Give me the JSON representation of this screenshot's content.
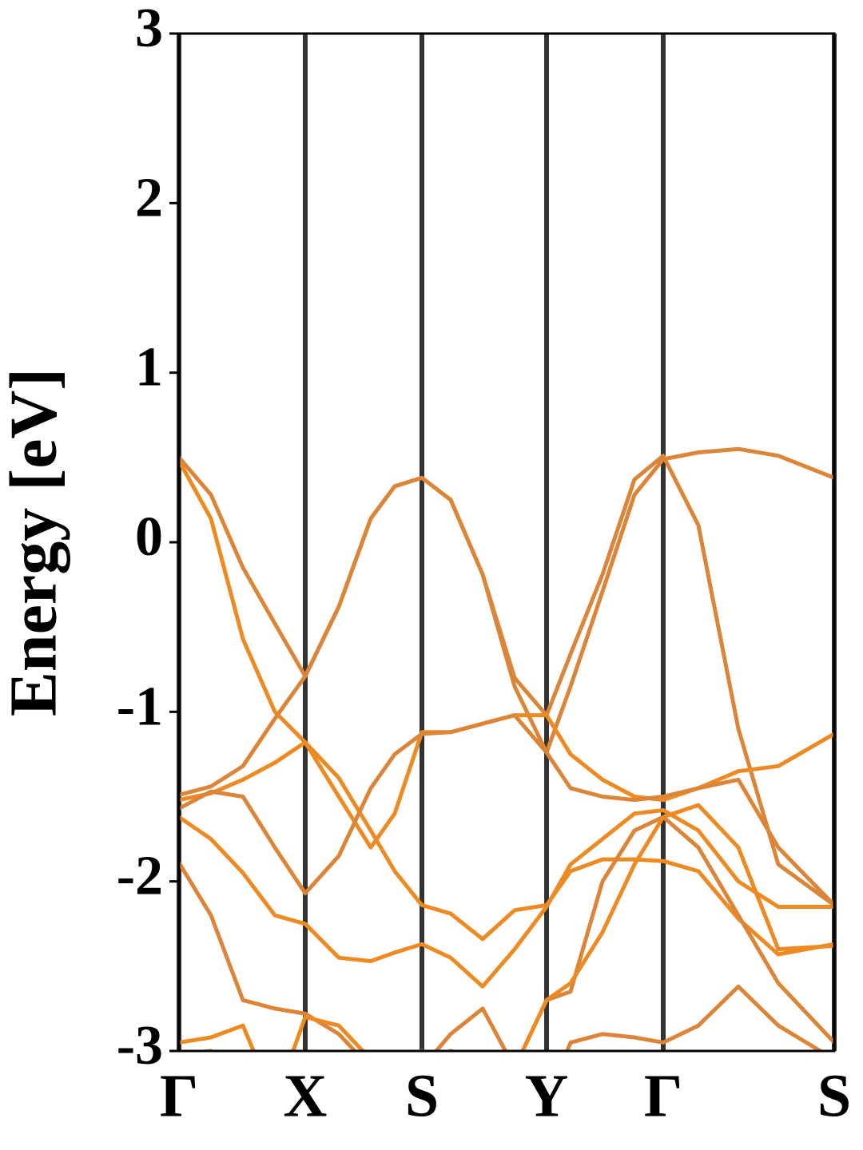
{
  "chart_data": {
    "type": "line",
    "y_label": "Energy [eV]",
    "ylim": [
      -3,
      3
    ],
    "yticks": [
      -3,
      -2,
      -1,
      0,
      1,
      2,
      3
    ],
    "xlim": [
      0,
      8.2
    ],
    "xticks": [
      {
        "value": 0,
        "label": "Γ"
      },
      {
        "value": 1.58,
        "label": "X"
      },
      {
        "value": 3.04,
        "label": "S"
      },
      {
        "value": 4.6,
        "label": "Y"
      },
      {
        "value": 6.06,
        "label": "Γ"
      },
      {
        "value": 8.2,
        "label": "S"
      }
    ],
    "grid": "x",
    "x": [
      0,
      0.4,
      0.8,
      1.2,
      1.58,
      2.0,
      2.4,
      2.7,
      3.04,
      3.4,
      3.8,
      4.2,
      4.6,
      4.9,
      5.3,
      5.7,
      6.06,
      6.5,
      7.0,
      7.5,
      8.2
    ],
    "series": [
      {
        "color": "#dc8538",
        "values": [
          0.5,
          0.28,
          -0.15,
          -0.48,
          -0.79,
          -0.38,
          0.14,
          0.33,
          0.38,
          0.25,
          -0.19,
          -0.85,
          -1.24,
          -0.85,
          -0.29,
          0.28,
          0.49,
          0.53,
          0.55,
          0.51,
          0.38
        ]
      },
      {
        "color": "#ee8a22",
        "values": [
          0.48,
          0.14,
          -0.57,
          -1.0,
          -1.18,
          -1.39,
          -1.7,
          -1.94,
          -2.14,
          -2.19,
          -2.34,
          -2.17,
          -2.14,
          -1.94,
          -1.87,
          -1.87,
          -1.88,
          -1.94,
          -2.22,
          -2.43,
          -2.37
        ]
      },
      {
        "color": "#dc8538",
        "values": [
          -1.49,
          -1.44,
          -1.32,
          -1.04,
          -0.79,
          -0.38,
          0.14,
          0.33,
          0.38,
          0.25,
          -0.19,
          -0.8,
          -1.02,
          -0.66,
          -0.19,
          0.37,
          0.51,
          0.1,
          -1.1,
          -1.9,
          -2.14
        ]
      },
      {
        "color": "#ee8a22",
        "values": [
          -1.52,
          -1.48,
          -1.4,
          -1.3,
          -1.18,
          -1.5,
          -1.8,
          -1.6,
          -1.12,
          -1.12,
          -1.07,
          -1.02,
          -1.02,
          -1.25,
          -1.4,
          -1.5,
          -1.52,
          -1.45,
          -1.35,
          -1.32,
          -1.13
        ]
      },
      {
        "color": "#dc8538",
        "values": [
          -1.57,
          -1.47,
          -1.5,
          -1.8,
          -2.07,
          -1.85,
          -1.45,
          -1.25,
          -1.13,
          -1.12,
          -1.07,
          -1.02,
          -1.24,
          -1.45,
          -1.5,
          -1.52,
          -1.5,
          -1.45,
          -1.4,
          -1.8,
          -2.14
        ]
      },
      {
        "color": "#ee8a22",
        "values": [
          -1.62,
          -1.75,
          -1.95,
          -2.2,
          -2.25,
          -2.45,
          -2.47,
          -2.42,
          -2.37,
          -2.45,
          -2.62,
          -2.4,
          -2.15,
          -1.9,
          -1.75,
          -1.6,
          -1.58,
          -1.7,
          -2.0,
          -2.15,
          -2.15
        ]
      },
      {
        "color": "#dc8538",
        "values": [
          -1.89,
          -2.2,
          -2.7,
          -2.75,
          -2.78,
          -2.9,
          -3.1,
          -3.2,
          -3.1,
          -2.9,
          -2.75,
          -3.1,
          -2.7,
          -2.65,
          -2.0,
          -1.7,
          -1.62,
          -1.8,
          -2.2,
          -2.6,
          -2.95
        ]
      },
      {
        "color": "#ee8a22",
        "values": [
          -2.95,
          -2.92,
          -2.85,
          -3.3,
          -2.8,
          -2.85,
          -3.05,
          -3.2,
          -3.0,
          -3.1,
          -3.2,
          -3.1,
          -2.7,
          -2.6,
          -2.3,
          -1.9,
          -1.62,
          -1.55,
          -1.8,
          -2.4,
          -2.38
        ]
      },
      {
        "color": "#dc8538",
        "values": [
          -3.02,
          -3.0,
          -3.1,
          -3.3,
          -3.4,
          -3.3,
          -3.2,
          -3.2,
          -3.05,
          -3.0,
          -3.05,
          -3.1,
          -3.3,
          -2.95,
          -2.9,
          -2.92,
          -2.95,
          -2.85,
          -2.62,
          -2.85,
          -3.05
        ]
      }
    ]
  }
}
